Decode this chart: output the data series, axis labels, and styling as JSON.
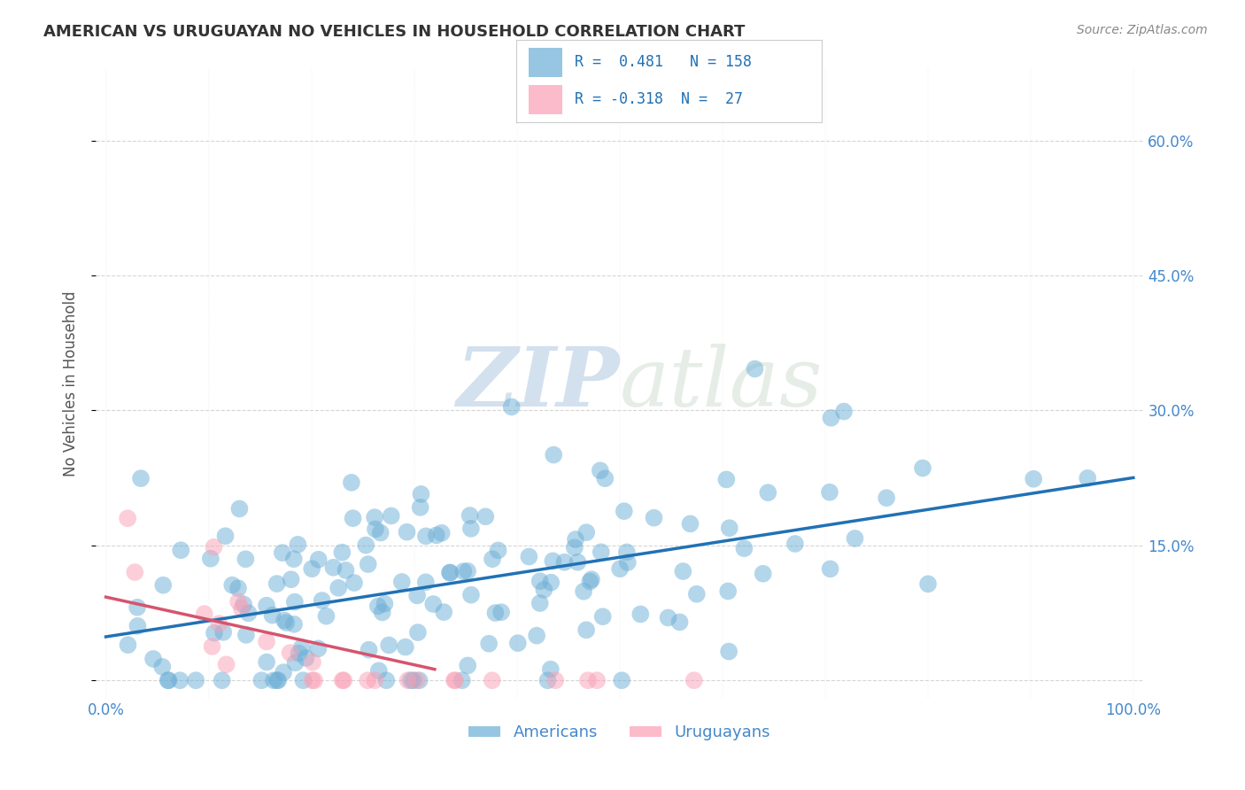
{
  "title": "AMERICAN VS URUGUAYAN NO VEHICLES IN HOUSEHOLD CORRELATION CHART",
  "source": "Source: ZipAtlas.com",
  "ylabel": "No Vehicles in Household",
  "xlim": [
    0.0,
    1.0
  ],
  "ylim": [
    -0.02,
    0.68
  ],
  "xticks": [
    0.0,
    0.1,
    0.2,
    0.3,
    0.4,
    0.5,
    0.6,
    0.7,
    0.8,
    0.9,
    1.0
  ],
  "yticks": [
    0.0,
    0.15,
    0.3,
    0.45,
    0.6
  ],
  "american_R": 0.481,
  "american_N": 158,
  "uruguayan_R": -0.318,
  "uruguayan_N": 27,
  "blue_color": "#6baed6",
  "pink_color": "#fa9fb5",
  "blue_line_color": "#2171b5",
  "pink_line_color": "#d6546e",
  "watermark_zip": "ZIP",
  "watermark_atlas": "atlas",
  "background_color": "#ffffff",
  "grid_color": "#cccccc",
  "title_color": "#333333",
  "axis_label_color": "#555555",
  "tick_label_color": "#4488cc",
  "right_tick_color": "#4488cc"
}
